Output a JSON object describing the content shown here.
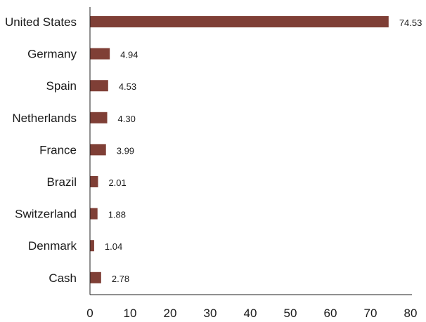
{
  "chart_data": {
    "type": "bar",
    "orientation": "horizontal",
    "categories": [
      "United States",
      "Germany",
      "Spain",
      "Netherlands",
      "France",
      "Brazil",
      "Switzerland",
      "Denmark",
      "Cash"
    ],
    "values": [
      74.53,
      4.94,
      4.53,
      4.3,
      3.99,
      2.01,
      1.88,
      1.04,
      2.78
    ],
    "value_labels": [
      "74.53",
      "4.94",
      "4.53",
      "4.30",
      "3.99",
      "2.01",
      "1.88",
      "1.04",
      "2.78"
    ],
    "title": "",
    "xlabel": "",
    "ylabel": "",
    "xlim": [
      0,
      80
    ],
    "xticks": [
      "0",
      "10",
      "20",
      "30",
      "40",
      "50",
      "60",
      "70",
      "80"
    ],
    "grid": false,
    "bar_color": "#7f3f36"
  }
}
